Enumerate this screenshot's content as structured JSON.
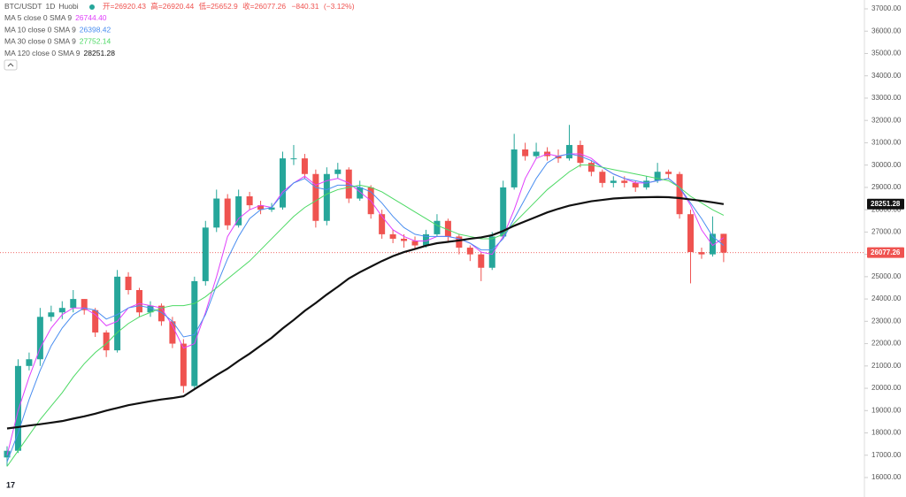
{
  "header": {
    "symbol": "BTC/USDT",
    "interval": "1D",
    "exchange": "Huobi",
    "ohlc_labels": [
      "开=",
      "高=",
      "低=",
      "收="
    ],
    "change": "−840.31",
    "change_pct": "(−3.12%)"
  },
  "chart_data": {
    "type": "candlestick",
    "up_color": "#26a69a",
    "down_color": "#ef5350",
    "open": [
      16900,
      17200,
      21000,
      21300,
      23200,
      23400,
      23600,
      24000,
      23500,
      22500,
      21700,
      25000,
      24400,
      23400,
      23700,
      23000,
      22000,
      20100,
      24800,
      27200,
      28500,
      27300,
      28600,
      28200,
      28000,
      28100,
      30300,
      30300,
      29600,
      27500,
      29600,
      29800,
      28500,
      29000,
      27800,
      26900,
      26700,
      26600,
      26400,
      26900,
      27500,
      26800,
      26300,
      26000,
      25400,
      26800,
      29000,
      30700,
      30400,
      30600,
      30400,
      30300,
      30900,
      30100,
      29700,
      29200,
      29300,
      29200,
      29000,
      29300,
      29700,
      29600,
      27800,
      26100,
      26000,
      26920.43
    ],
    "high": [
      17400,
      21300,
      21600,
      23600,
      23700,
      23900,
      24400,
      24000,
      23600,
      22600,
      25300,
      25200,
      24500,
      23900,
      23800,
      23200,
      22200,
      25000,
      27500,
      28900,
      28700,
      28900,
      28800,
      28400,
      28300,
      30600,
      30900,
      30500,
      29800,
      29900,
      30100,
      29900,
      29300,
      29100,
      28000,
      27100,
      26900,
      26800,
      27100,
      27800,
      27600,
      26900,
      26400,
      26100,
      27000,
      29300,
      31400,
      31000,
      31000,
      30800,
      30700,
      31800,
      31100,
      30200,
      29800,
      29500,
      29500,
      29300,
      29500,
      30100,
      29800,
      29700,
      28000,
      26300,
      27700,
      26920.44
    ],
    "low": [
      16500,
      17100,
      20800,
      21000,
      23000,
      23100,
      23400,
      23300,
      22300,
      21400,
      21600,
      24200,
      23200,
      23200,
      22800,
      21800,
      19800,
      20000,
      24600,
      27000,
      27100,
      27200,
      28000,
      27800,
      27900,
      28000,
      30000,
      29400,
      27200,
      27300,
      29400,
      28300,
      28400,
      27600,
      26700,
      26500,
      26300,
      26200,
      26300,
      26800,
      26600,
      26000,
      25700,
      24800,
      25300,
      26700,
      28900,
      30200,
      30300,
      30200,
      30100,
      30200,
      29900,
      29500,
      29000,
      29000,
      29000,
      28800,
      28900,
      29200,
      29400,
      27600,
      24700,
      25800,
      25900,
      25652.9
    ],
    "close": [
      17200,
      21000,
      21300,
      23200,
      23400,
      23600,
      24000,
      23500,
      22500,
      21700,
      25000,
      24400,
      23400,
      23700,
      23000,
      22000,
      20100,
      24800,
      27200,
      28500,
      27300,
      28600,
      28200,
      28000,
      28100,
      30300,
      30300,
      29600,
      27500,
      29600,
      29800,
      28500,
      29000,
      27800,
      26900,
      26700,
      26600,
      26400,
      26900,
      27500,
      26800,
      26300,
      26000,
      25400,
      26800,
      29000,
      30700,
      30400,
      30600,
      30400,
      30300,
      30900,
      30100,
      29700,
      29200,
      29300,
      29200,
      29000,
      29300,
      29700,
      29600,
      27800,
      26100,
      26000,
      26920,
      26077.26
    ],
    "series": [
      {
        "name": "MA 5 close 0 SMA 9",
        "color": "#e040fb",
        "last_value_label": "26744.40",
        "values": [
          17000,
          19000,
          20500,
          21800,
          22700,
          23300,
          23600,
          23600,
          23300,
          22800,
          23000,
          23600,
          23800,
          23700,
          23600,
          22800,
          21800,
          22000,
          23400,
          25000,
          26800,
          27600,
          28000,
          28200,
          28100,
          28800,
          29200,
          29500,
          29100,
          29300,
          29400,
          29200,
          28800,
          28400,
          27700,
          27100,
          26800,
          26600,
          26600,
          26800,
          26800,
          26700,
          26500,
          26100,
          26000,
          26800,
          28000,
          29400,
          30300,
          30500,
          30400,
          30500,
          30500,
          30300,
          29900,
          29600,
          29400,
          29200,
          29200,
          29300,
          29400,
          29000,
          28200,
          27100,
          26400,
          26744.4
        ]
      },
      {
        "name": "MA 10 close 0 SMA 9",
        "color": "#4a8ef0",
        "values": [
          16700,
          18000,
          19500,
          20800,
          21900,
          22700,
          23300,
          23600,
          23500,
          23100,
          23300,
          23600,
          23700,
          23600,
          23400,
          23000,
          22300,
          22400,
          23300,
          24600,
          25800,
          26800,
          27600,
          28000,
          28100,
          28700,
          29200,
          29400,
          29000,
          28900,
          29100,
          29100,
          29000,
          28800,
          28300,
          27700,
          27200,
          26900,
          26800,
          26800,
          26800,
          26700,
          26500,
          26200,
          26200,
          26700,
          27600,
          28500,
          29400,
          30100,
          30400,
          30500,
          30400,
          30200,
          29900,
          29600,
          29400,
          29300,
          29200,
          29300,
          29400,
          29000,
          28300,
          27600,
          26800,
          26398.42
        ]
      },
      {
        "name": "MA 30 close 0 SMA 9",
        "color": "#4cd964",
        "values": [
          16500,
          17200,
          17900,
          18600,
          19200,
          19800,
          20500,
          21100,
          21600,
          22000,
          22500,
          22900,
          23200,
          23400,
          23600,
          23700,
          23700,
          23800,
          24100,
          24500,
          24900,
          25300,
          25700,
          26200,
          26700,
          27200,
          27700,
          28100,
          28400,
          28700,
          28900,
          29000,
          29100,
          29000,
          28800,
          28500,
          28200,
          27900,
          27600,
          27300,
          27100,
          26900,
          26800,
          26700,
          26700,
          26900,
          27400,
          27900,
          28400,
          28900,
          29300,
          29700,
          30000,
          30000,
          29900,
          29800,
          29700,
          29600,
          29500,
          29400,
          29300,
          29000,
          28600,
          28300,
          28000,
          27752.14
        ]
      },
      {
        "name": "MA 120 close 0 SMA 9",
        "color": "#111111",
        "values": [
          18200,
          18260,
          18330,
          18390,
          18460,
          18530,
          18640,
          18740,
          18860,
          19000,
          19120,
          19240,
          19330,
          19420,
          19500,
          19560,
          19640,
          19960,
          20270,
          20590,
          20880,
          21230,
          21550,
          21910,
          22260,
          22680,
          23060,
          23470,
          23820,
          24200,
          24550,
          24920,
          25200,
          25450,
          25700,
          25920,
          26100,
          26240,
          26390,
          26500,
          26560,
          26620,
          26700,
          26760,
          26860,
          27050,
          27280,
          27480,
          27680,
          27880,
          28040,
          28180,
          28280,
          28380,
          28440,
          28500,
          28530,
          28550,
          28560,
          28570,
          28560,
          28520,
          28460,
          28400,
          28330,
          28251.28
        ]
      }
    ],
    "ylim": [
      15500,
      37300
    ],
    "yticks": [
      {
        "value": 16000,
        "label": "16000.00"
      },
      {
        "value": 17000,
        "label": "17000.00"
      },
      {
        "value": 18000,
        "label": "18000.00"
      },
      {
        "value": 19000,
        "label": "19000.00"
      },
      {
        "value": 20000,
        "label": "20000.00"
      },
      {
        "value": 21000,
        "label": "21000.00"
      },
      {
        "value": 22000,
        "label": "22000.00"
      },
      {
        "value": 23000,
        "label": "23000.00"
      },
      {
        "value": 24000,
        "label": "24000.00"
      },
      {
        "value": 25000,
        "label": "25000.00"
      },
      {
        "value": 26000,
        "label": "26000.00"
      },
      {
        "value": 27000,
        "label": "27000.00"
      },
      {
        "value": 28000,
        "label": "28000.00"
      },
      {
        "value": 29000,
        "label": "29000.00"
      },
      {
        "value": 30000,
        "label": "30000.00"
      },
      {
        "value": 31000,
        "label": "31000.00"
      },
      {
        "value": 32000,
        "label": "32000.00"
      },
      {
        "value": 33000,
        "label": "33000.00"
      },
      {
        "value": 34000,
        "label": "34000.00"
      },
      {
        "value": 35000,
        "label": "35000.00"
      },
      {
        "value": 36000,
        "label": "36000.00"
      },
      {
        "value": 37000,
        "label": "37000.00"
      }
    ],
    "grid": false
  }
}
